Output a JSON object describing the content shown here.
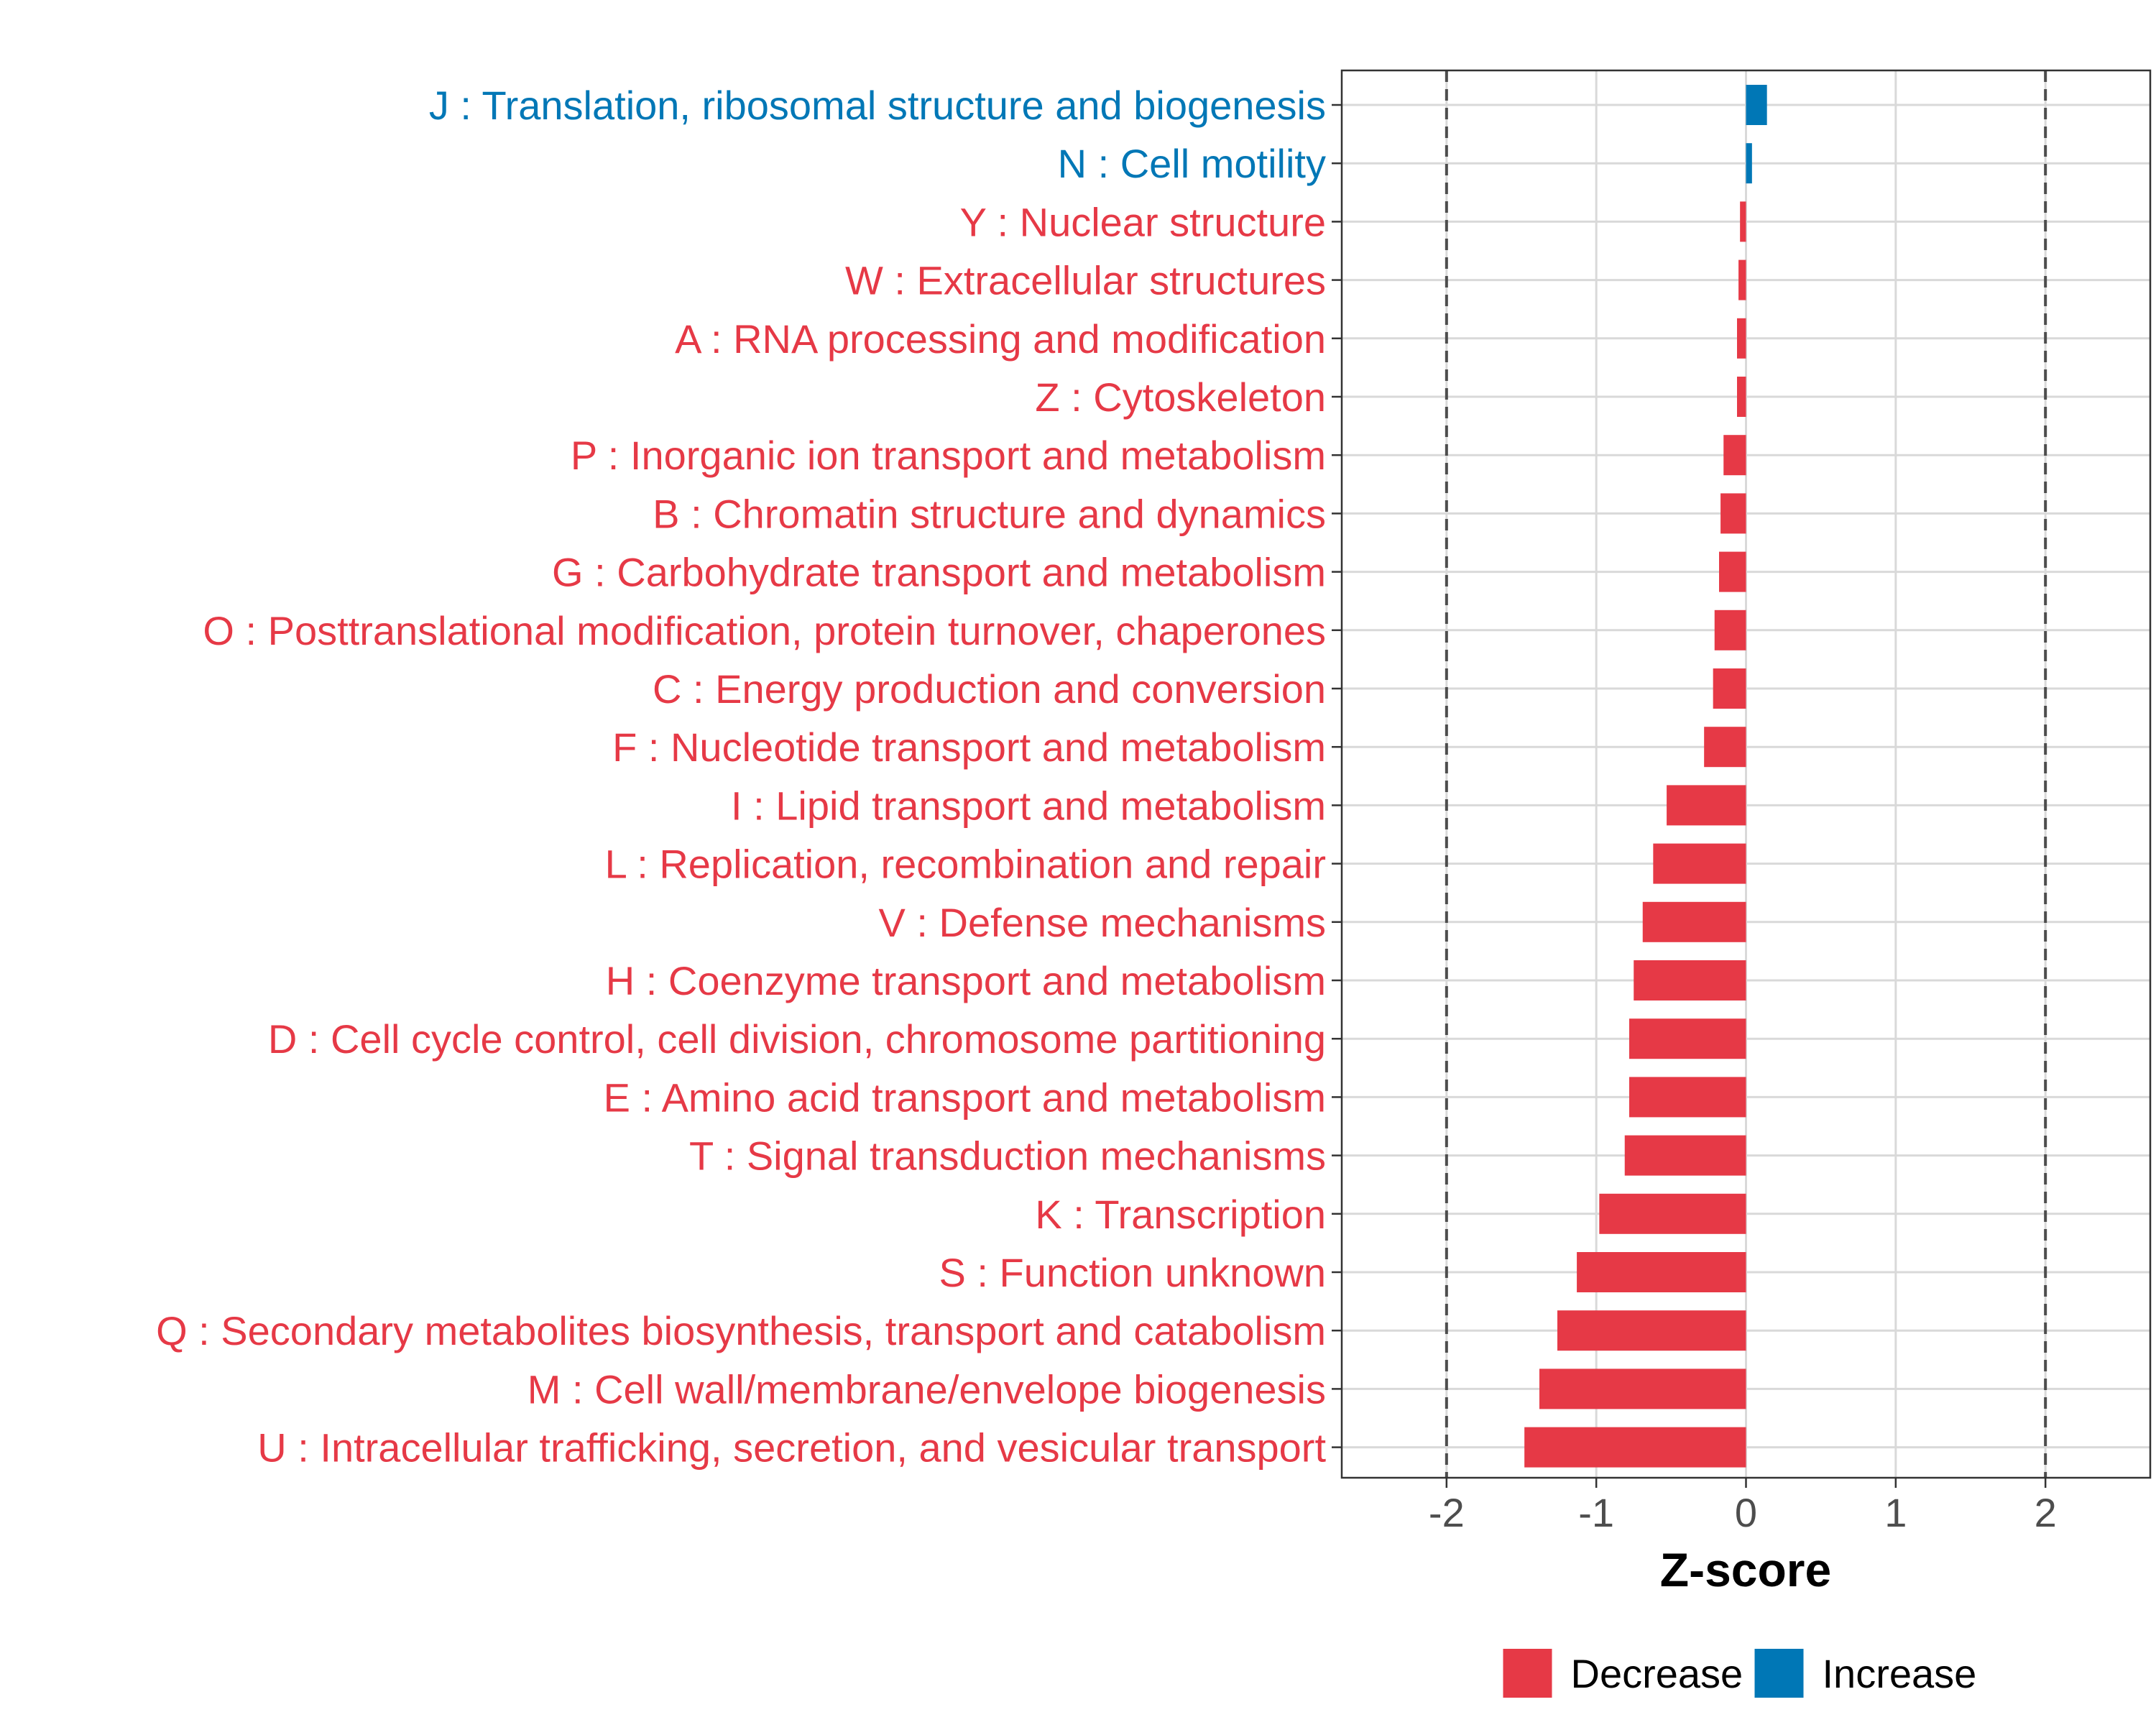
{
  "chart_data": {
    "type": "bar",
    "orientation": "horizontal",
    "xlabel": "Z-score",
    "xlim": [
      -2.7,
      2.7
    ],
    "xticks": [
      -2,
      -1,
      0,
      1,
      2
    ],
    "xtick_labels": [
      "-2",
      "-1",
      "0",
      "1",
      "2"
    ],
    "reference_lines": [
      -2,
      2
    ],
    "grid": true,
    "legend_position": "bottom",
    "legend": [
      {
        "name": "Decrease",
        "color": "#E63946"
      },
      {
        "name": "Increase",
        "color": "#0077B6"
      }
    ],
    "categories": [
      "J : Translation, ribosomal structure and biogenesis",
      "N : Cell motility",
      "Y : Nuclear structure",
      "W : Extracellular structures",
      "A : RNA processing and modification",
      "Z : Cytoskeleton",
      "P : Inorganic ion transport and metabolism",
      "B : Chromatin structure and dynamics",
      "G : Carbohydrate transport and metabolism",
      "O : Posttranslational modification, protein turnover, chaperones",
      "C : Energy production and conversion",
      "F : Nucleotide transport and metabolism",
      "I : Lipid transport and metabolism",
      "L : Replication, recombination and repair",
      "V : Defense mechanisms",
      "H : Coenzyme transport and metabolism",
      "D : Cell cycle control, cell division, chromosome partitioning",
      "E : Amino acid transport and metabolism",
      "T : Signal transduction mechanisms",
      "K : Transcription",
      "S : Function unknown",
      "Q : Secondary metabolites biosynthesis, transport and catabolism",
      "M : Cell wall/membrane/envelope biogenesis",
      "U : Intracellular trafficking, secretion, and vesicular transport"
    ],
    "values": [
      0.14,
      0.04,
      -0.04,
      -0.05,
      -0.06,
      -0.06,
      -0.15,
      -0.17,
      -0.18,
      -0.21,
      -0.22,
      -0.28,
      -0.53,
      -0.62,
      -0.69,
      -0.75,
      -0.78,
      -0.78,
      -0.81,
      -0.98,
      -1.13,
      -1.26,
      -1.38,
      -1.48
    ],
    "direction": [
      "Increase",
      "Increase",
      "Decrease",
      "Decrease",
      "Decrease",
      "Decrease",
      "Decrease",
      "Decrease",
      "Decrease",
      "Decrease",
      "Decrease",
      "Decrease",
      "Decrease",
      "Decrease",
      "Decrease",
      "Decrease",
      "Decrease",
      "Decrease",
      "Decrease",
      "Decrease",
      "Decrease",
      "Decrease",
      "Decrease",
      "Decrease"
    ]
  }
}
